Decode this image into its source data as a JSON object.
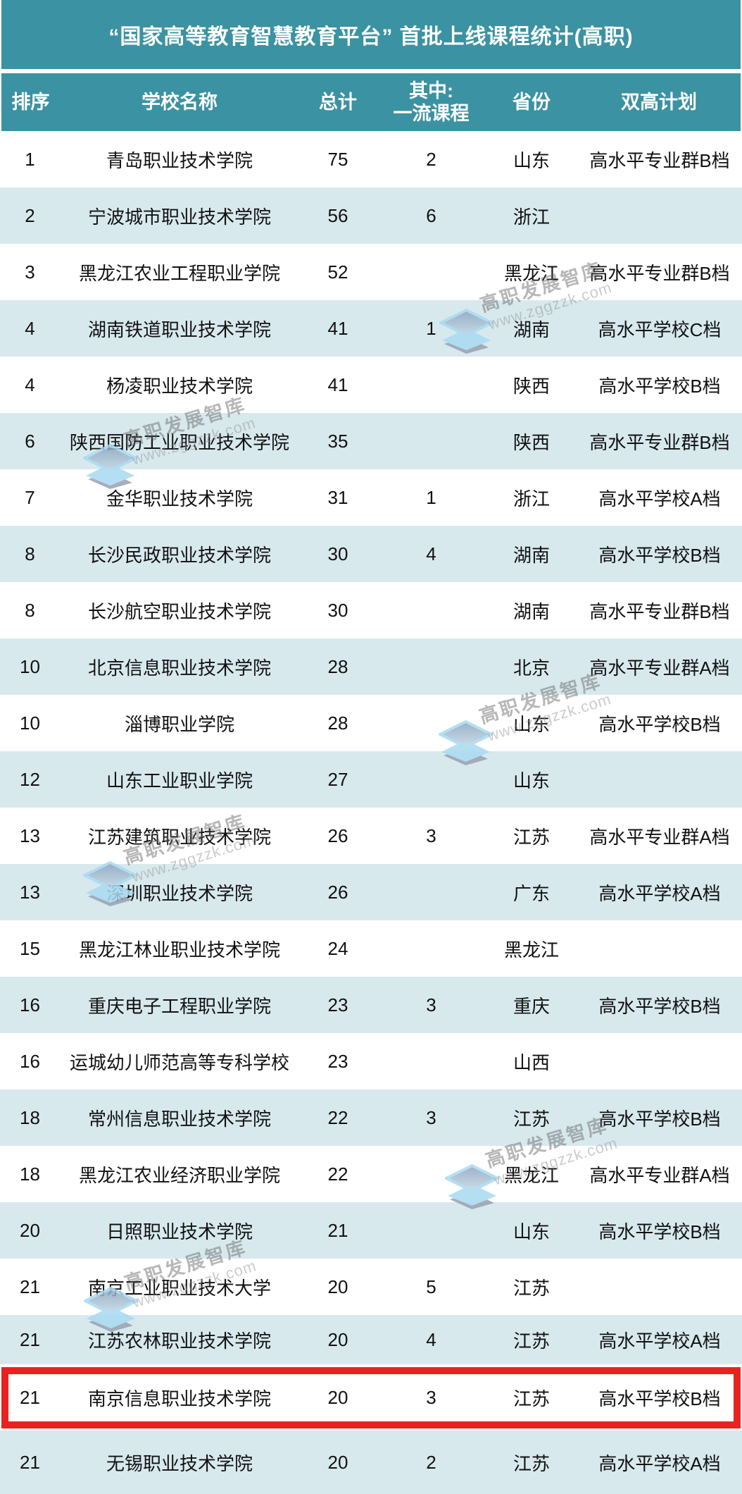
{
  "title": "“国家高等教育智慧教育平台” 首批上线课程统计(高职)",
  "header": {
    "rank": "排序",
    "school": "学校名称",
    "total": "总计",
    "first_class_line1": "其中:",
    "first_class_line2": "一流课程",
    "province": "省份",
    "plan": "双高计划"
  },
  "chart_data": {
    "type": "table",
    "title": "“国家高等教育智慧教育平台” 首批上线课程统计(高职)",
    "columns": [
      "排序",
      "学校名称",
      "总计",
      "其中:一流课程",
      "省份",
      "双高计划"
    ],
    "rows": [
      [
        "1",
        "青岛职业技术学院",
        "75",
        "2",
        "山东",
        "高水平专业群B档"
      ],
      [
        "2",
        "宁波城市职业技术学院",
        "56",
        "6",
        "浙江",
        ""
      ],
      [
        "3",
        "黑龙江农业工程职业学院",
        "52",
        "",
        "黑龙江",
        "高水平专业群B档"
      ],
      [
        "4",
        "湖南铁道职业技术学院",
        "41",
        "1",
        "湖南",
        "高水平学校C档"
      ],
      [
        "4",
        "杨凌职业技术学院",
        "41",
        "",
        "陕西",
        "高水平学校B档"
      ],
      [
        "6",
        "陕西国防工业职业技术学院",
        "35",
        "",
        "陕西",
        "高水平专业群B档"
      ],
      [
        "7",
        "金华职业技术学院",
        "31",
        "1",
        "浙江",
        "高水平学校A档"
      ],
      [
        "8",
        "长沙民政职业技术学院",
        "30",
        "4",
        "湖南",
        "高水平学校B档"
      ],
      [
        "8",
        "长沙航空职业技术学院",
        "30",
        "",
        "湖南",
        "高水平专业群B档"
      ],
      [
        "10",
        "北京信息职业技术学院",
        "28",
        "",
        "北京",
        "高水平专业群A档"
      ],
      [
        "10",
        "淄博职业学院",
        "28",
        "",
        "山东",
        "高水平学校B档"
      ],
      [
        "12",
        "山东工业职业学院",
        "27",
        "",
        "山东",
        ""
      ],
      [
        "13",
        "江苏建筑职业技术学院",
        "26",
        "3",
        "江苏",
        "高水平专业群A档"
      ],
      [
        "13",
        "深圳职业技术学院",
        "26",
        "",
        "广东",
        "高水平学校A档"
      ],
      [
        "15",
        "黑龙江林业职业技术学院",
        "24",
        "",
        "黑龙江",
        ""
      ],
      [
        "16",
        "重庆电子工程职业学院",
        "23",
        "3",
        "重庆",
        "高水平学校B档"
      ],
      [
        "16",
        "运城幼儿师范高等专科学校",
        "23",
        "",
        "山西",
        ""
      ],
      [
        "18",
        "常州信息职业技术学院",
        "22",
        "3",
        "江苏",
        "高水平学校B档"
      ],
      [
        "18",
        "黑龙江农业经济职业学院",
        "22",
        "",
        "黑龙江",
        "高水平专业群A档"
      ],
      [
        "20",
        "日照职业技术学院",
        "21",
        "",
        "山东",
        "高水平学校B档"
      ],
      [
        "21",
        "南京工业职业技术大学",
        "20",
        "5",
        "江苏",
        ""
      ],
      [
        "21",
        "江苏农林职业技术学院",
        "20",
        "4",
        "江苏",
        "高水平学校A档"
      ],
      [
        "21",
        "南京信息职业技术学院",
        "20",
        "3",
        "江苏",
        "高水平学校B档"
      ],
      [
        "21",
        "无锡职业技术学院",
        "20",
        "2",
        "江苏",
        "高水平学校A档"
      ]
    ],
    "highlighted_row_index": 22,
    "layout_hints": {
      "stripe": "alternating white / light blue",
      "highlight": "red box around row with 南京信息职业技术学院"
    }
  },
  "watermark": {
    "brand": "高职发展智库",
    "site": "www.zggzzk.com"
  },
  "colors": {
    "header_teal": "#3b92a2",
    "stripe_blue": "#d8e9ee",
    "highlight_red": "#e8231f"
  }
}
